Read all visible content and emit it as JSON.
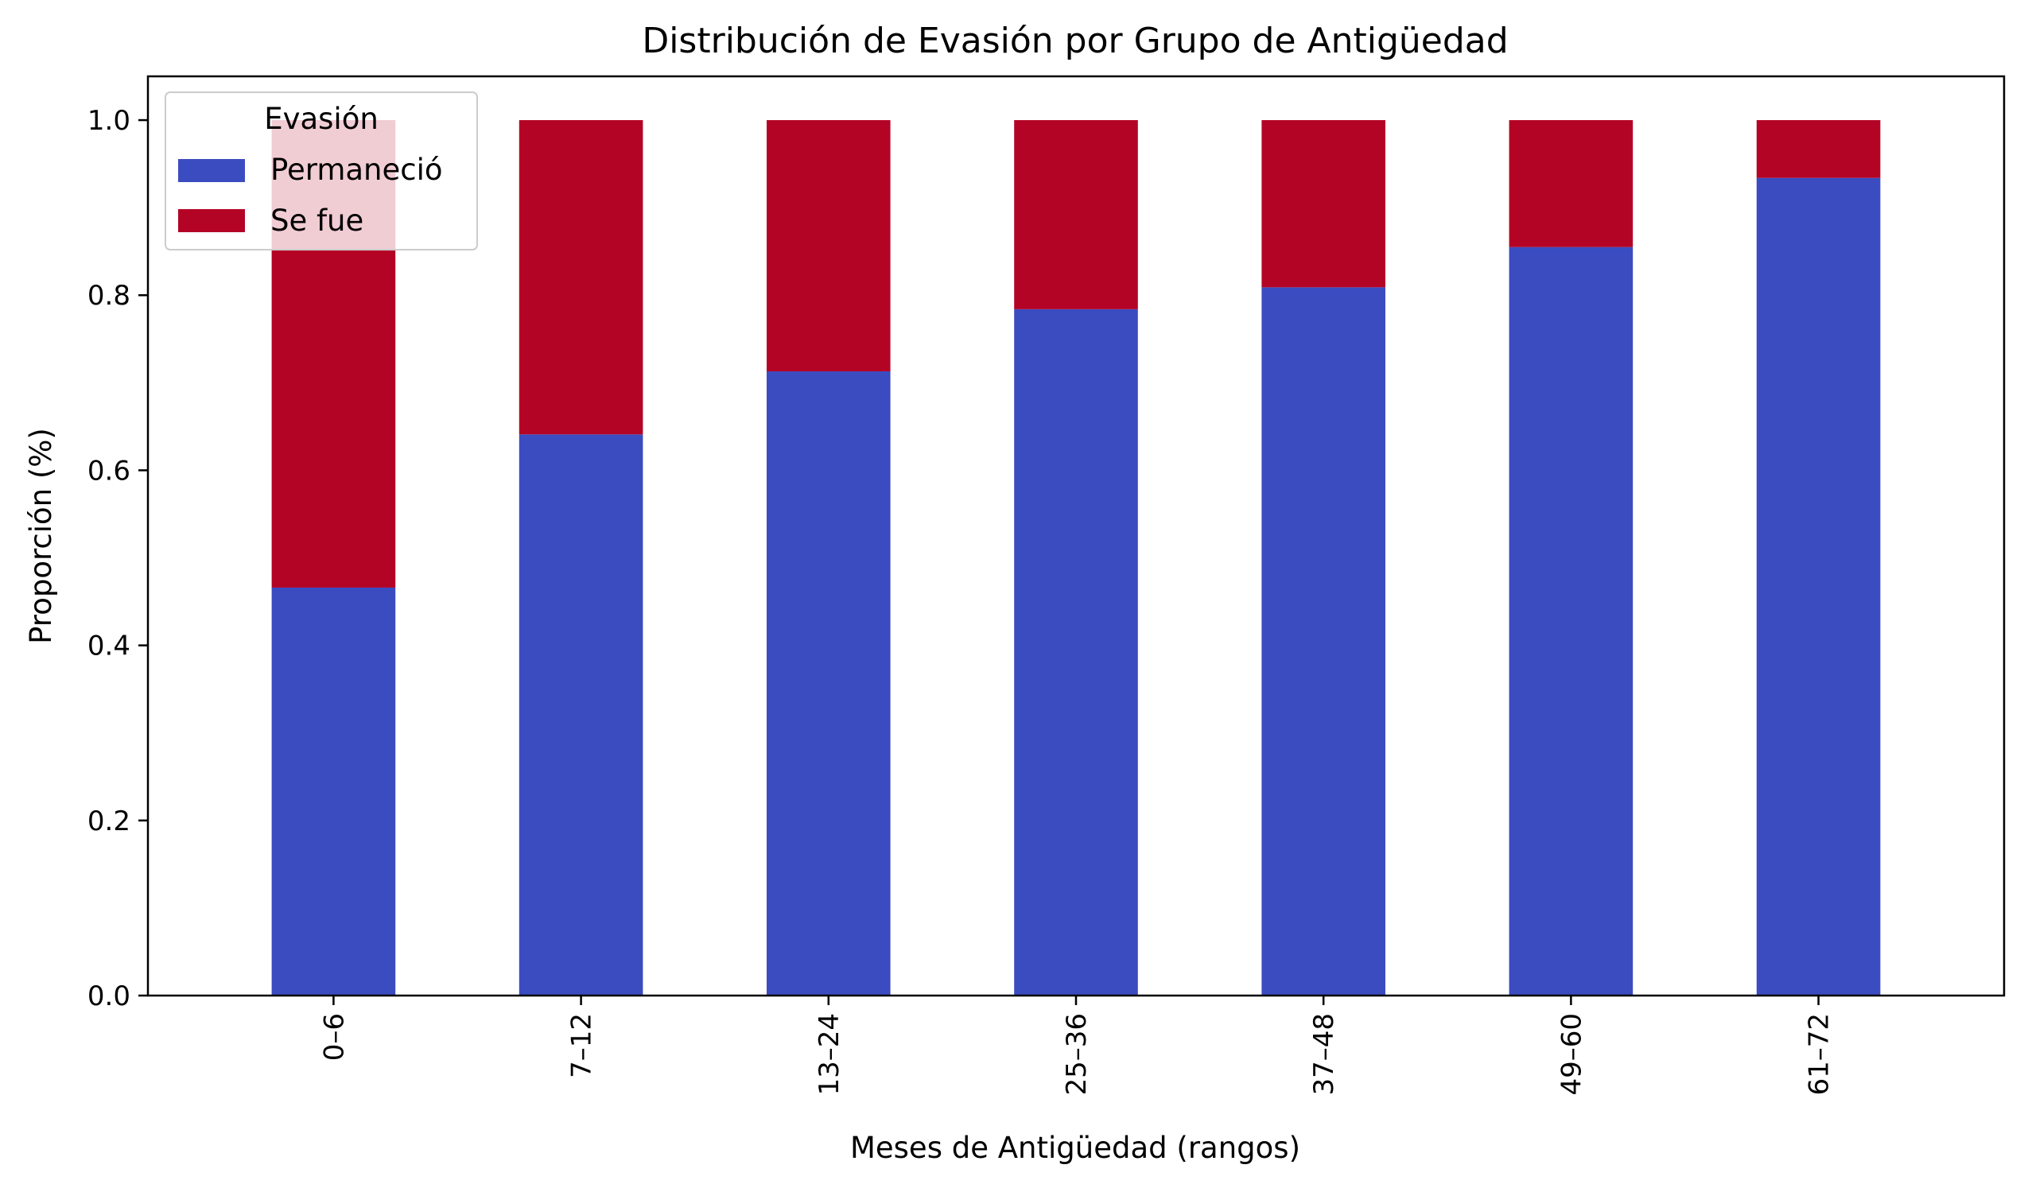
{
  "chart_data": {
    "type": "bar",
    "stacked": true,
    "title": "Distribución de Evasión por Grupo de Antigüedad",
    "xlabel": "Meses de Antigüedad (rangos)",
    "ylabel": "Proporción (%)",
    "ylim": [
      0,
      1.05
    ],
    "yticks": [
      "0.0",
      "0.2",
      "0.4",
      "0.6",
      "0.8",
      "1.0"
    ],
    "categories": [
      "0–6",
      "7–12",
      "13–24",
      "25–36",
      "37–48",
      "49–60",
      "61–72"
    ],
    "series": [
      {
        "name": "Permaneció",
        "color": "#3b4cc0",
        "values": [
          0.466,
          0.641,
          0.713,
          0.784,
          0.809,
          0.855,
          0.934
        ]
      },
      {
        "name": "Se fue",
        "color": "#b40426",
        "values": [
          0.534,
          0.359,
          0.287,
          0.216,
          0.191,
          0.145,
          0.066
        ]
      }
    ],
    "legend": {
      "title": "Evasión",
      "position": "upper-left"
    },
    "grid": false
  }
}
